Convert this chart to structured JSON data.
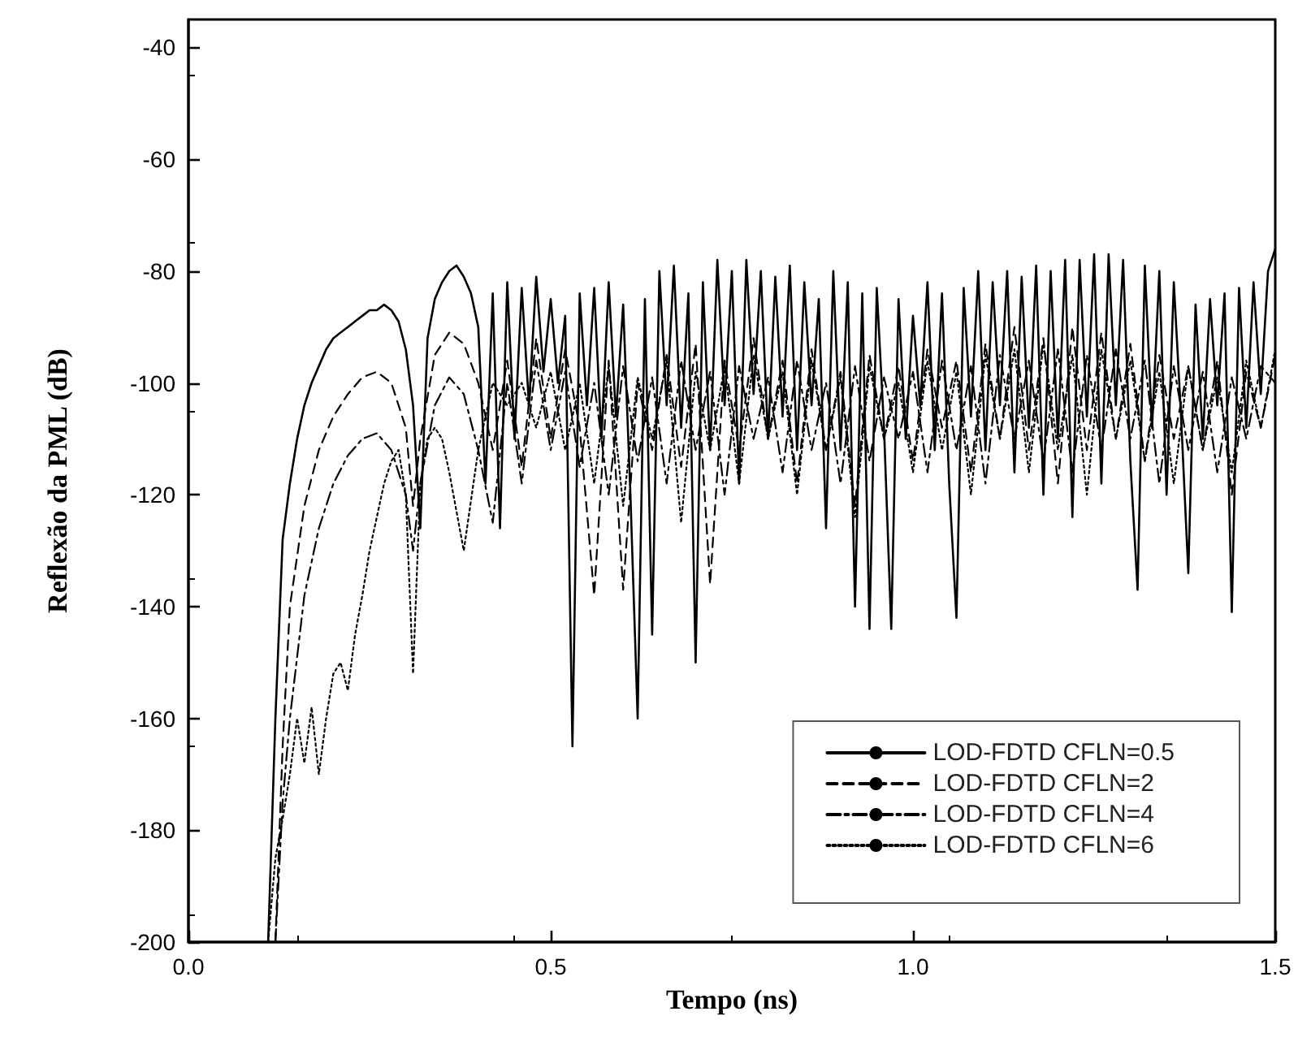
{
  "chart_data": {
    "type": "line",
    "xlabel": "Tempo (ns)",
    "ylabel": "Reflexão da PML (dB)",
    "xlim": [
      0,
      1.5
    ],
    "ylim": [
      -200,
      -35
    ],
    "xticks": [
      {
        "value": 0,
        "label": "0.0"
      },
      {
        "value": 0.5,
        "label": "0.5"
      },
      {
        "value": 1,
        "label": "1.0"
      },
      {
        "value": 1.5,
        "label": "1.5"
      }
    ],
    "yticks": [
      -200,
      -180,
      -160,
      -140,
      -120,
      -100,
      -80,
      -60,
      -40
    ],
    "grid": false,
    "legend": "bottom right",
    "marker": "none",
    "series": [
      {
        "name": "LOD-FDTD CFLN=0.5",
        "color": "#000000",
        "line_style": "solid",
        "x": [
          0.11,
          0.12,
          0.13,
          0.14,
          0.15,
          0.16,
          0.17,
          0.18,
          0.19,
          0.2,
          0.21,
          0.22,
          0.23,
          0.24,
          0.25,
          0.26,
          0.27,
          0.28,
          0.29,
          0.3,
          0.31,
          0.32,
          0.33,
          0.34,
          0.35,
          0.36,
          0.37,
          0.38,
          0.39,
          0.4,
          0.41,
          0.42,
          0.43,
          0.44,
          0.45,
          0.46,
          0.47,
          0.48,
          0.49,
          0.5,
          0.51,
          0.52,
          0.53,
          0.54,
          0.55,
          0.56,
          0.57,
          0.58,
          0.59,
          0.6,
          0.61,
          0.62,
          0.63,
          0.64,
          0.65,
          0.66,
          0.67,
          0.68,
          0.69,
          0.7,
          0.71,
          0.72,
          0.73,
          0.74,
          0.75,
          0.76,
          0.77,
          0.78,
          0.79,
          0.8,
          0.81,
          0.82,
          0.83,
          0.84,
          0.85,
          0.86,
          0.87,
          0.88,
          0.89,
          0.9,
          0.91,
          0.92,
          0.93,
          0.94,
          0.95,
          0.96,
          0.97,
          0.98,
          0.99,
          1.0,
          1.01,
          1.02,
          1.03,
          1.04,
          1.05,
          1.06,
          1.07,
          1.08,
          1.09,
          1.1,
          1.11,
          1.12,
          1.13,
          1.14,
          1.15,
          1.16,
          1.17,
          1.18,
          1.19,
          1.2,
          1.21,
          1.22,
          1.23,
          1.24,
          1.25,
          1.26,
          1.27,
          1.28,
          1.29,
          1.3,
          1.31,
          1.32,
          1.33,
          1.34,
          1.35,
          1.36,
          1.37,
          1.38,
          1.39,
          1.4,
          1.41,
          1.42,
          1.43,
          1.44,
          1.45,
          1.46,
          1.47,
          1.48,
          1.49,
          1.5
        ],
        "values": [
          -200,
          -160,
          -128,
          -118,
          -110,
          -104,
          -100,
          -97,
          -94,
          -92,
          -91,
          -90,
          -89,
          -88,
          -87,
          -87,
          -86,
          -87,
          -89,
          -94,
          -104,
          -126,
          -92,
          -85,
          -82,
          -80,
          -79,
          -81,
          -84,
          -90,
          -118,
          -84,
          -126,
          -82,
          -110,
          -83,
          -104,
          -81,
          -98,
          -85,
          -100,
          -88,
          -165,
          -84,
          -104,
          -83,
          -110,
          -82,
          -106,
          -86,
          -120,
          -160,
          -85,
          -145,
          -80,
          -104,
          -79,
          -108,
          -84,
          -150,
          -82,
          -112,
          -78,
          -104,
          -80,
          -118,
          -78,
          -102,
          -80,
          -110,
          -81,
          -106,
          -79,
          -112,
          -82,
          -104,
          -85,
          -126,
          -80,
          -112,
          -82,
          -140,
          -84,
          -144,
          -83,
          -108,
          -144,
          -85,
          -110,
          -88,
          -104,
          -82,
          -112,
          -84,
          -118,
          -142,
          -83,
          -106,
          -80,
          -112,
          -82,
          -104,
          -80,
          -116,
          -81,
          -108,
          -79,
          -120,
          -80,
          -110,
          -78,
          -124,
          -78,
          -106,
          -77,
          -118,
          -77,
          -104,
          -78,
          -114,
          -137,
          -79,
          -108,
          -80,
          -120,
          -82,
          -106,
          -134,
          -86,
          -110,
          -85,
          -104,
          -84,
          -141,
          -83,
          -108,
          -82,
          -102,
          -80,
          -76
        ]
      },
      {
        "name": "LOD-FDTD CFLN=2",
        "color": "#000000",
        "line_style": "dashed",
        "x": [
          0.12,
          0.13,
          0.14,
          0.16,
          0.18,
          0.2,
          0.22,
          0.24,
          0.26,
          0.28,
          0.3,
          0.31,
          0.32,
          0.34,
          0.36,
          0.38,
          0.4,
          0.42,
          0.44,
          0.46,
          0.48,
          0.5,
          0.52,
          0.54,
          0.56,
          0.58,
          0.6,
          0.62,
          0.64,
          0.66,
          0.68,
          0.7,
          0.72,
          0.74,
          0.76,
          0.78,
          0.8,
          0.82,
          0.84,
          0.86,
          0.88,
          0.9,
          0.92,
          0.94,
          0.96,
          0.98,
          1.0,
          1.02,
          1.04,
          1.06,
          1.08,
          1.1,
          1.12,
          1.14,
          1.16,
          1.18,
          1.2,
          1.22,
          1.24,
          1.26,
          1.28,
          1.3,
          1.32,
          1.34,
          1.36,
          1.38,
          1.4,
          1.42,
          1.44,
          1.46,
          1.48,
          1.5
        ],
        "values": [
          -200,
          -165,
          -140,
          -122,
          -112,
          -106,
          -102,
          -99,
          -98,
          -100,
          -108,
          -122,
          -110,
          -95,
          -91,
          -93,
          -100,
          -112,
          -96,
          -115,
          -92,
          -110,
          -94,
          -108,
          -138,
          -96,
          -137,
          -100,
          -112,
          -95,
          -115,
          -93,
          -136,
          -96,
          -112,
          -92,
          -110,
          -96,
          -118,
          -94,
          -112,
          -98,
          -122,
          -95,
          -110,
          -97,
          -114,
          -94,
          -108,
          -96,
          -116,
          -93,
          -110,
          -90,
          -112,
          -92,
          -118,
          -90,
          -112,
          -91,
          -110,
          -93,
          -114,
          -95,
          -110,
          -97,
          -112,
          -96,
          -120,
          -98,
          -108,
          -95
        ]
      },
      {
        "name": "LOD-FDTD CFLN=4",
        "color": "#000000",
        "line_style": "dashdot",
        "x": [
          0.12,
          0.13,
          0.14,
          0.16,
          0.18,
          0.2,
          0.22,
          0.24,
          0.26,
          0.28,
          0.3,
          0.31,
          0.32,
          0.34,
          0.36,
          0.38,
          0.4,
          0.42,
          0.44,
          0.46,
          0.48,
          0.5,
          0.52,
          0.54,
          0.56,
          0.58,
          0.6,
          0.62,
          0.64,
          0.66,
          0.68,
          0.7,
          0.72,
          0.74,
          0.76,
          0.78,
          0.8,
          0.82,
          0.84,
          0.86,
          0.88,
          0.9,
          0.92,
          0.94,
          0.96,
          0.98,
          1.0,
          1.02,
          1.04,
          1.06,
          1.08,
          1.1,
          1.12,
          1.14,
          1.16,
          1.18,
          1.2,
          1.22,
          1.24,
          1.26,
          1.28,
          1.3,
          1.32,
          1.34,
          1.36,
          1.38,
          1.4,
          1.42,
          1.44,
          1.46,
          1.48,
          1.5
        ],
        "values": [
          -200,
          -175,
          -160,
          -138,
          -126,
          -118,
          -113,
          -110,
          -109,
          -112,
          -120,
          -130,
          -118,
          -104,
          -99,
          -102,
          -112,
          -125,
          -100,
          -118,
          -96,
          -112,
          -98,
          -115,
          -100,
          -120,
          -97,
          -114,
          -99,
          -118,
          -96,
          -112,
          -98,
          -120,
          -97,
          -110,
          -99,
          -116,
          -96,
          -112,
          -100,
          -118,
          -97,
          -114,
          -99,
          -110,
          -98,
          -116,
          -96,
          -112,
          -97,
          -118,
          -95,
          -110,
          -96,
          -114,
          -94,
          -116,
          -95,
          -112,
          -94,
          -110,
          -96,
          -118,
          -97,
          -112,
          -98,
          -116,
          -99,
          -110,
          -97,
          -100
        ]
      },
      {
        "name": "LOD-FDTD CFLN=6",
        "color": "#000000",
        "line_style": "dotted",
        "x": [
          0.11,
          0.12,
          0.13,
          0.14,
          0.15,
          0.16,
          0.17,
          0.18,
          0.19,
          0.2,
          0.21,
          0.22,
          0.23,
          0.24,
          0.25,
          0.26,
          0.27,
          0.28,
          0.29,
          0.3,
          0.31,
          0.32,
          0.33,
          0.34,
          0.35,
          0.36,
          0.38,
          0.4,
          0.42,
          0.44,
          0.46,
          0.48,
          0.5,
          0.52,
          0.54,
          0.56,
          0.58,
          0.6,
          0.62,
          0.64,
          0.66,
          0.68,
          0.7,
          0.72,
          0.74,
          0.76,
          0.78,
          0.8,
          0.82,
          0.84,
          0.86,
          0.88,
          0.9,
          0.92,
          0.94,
          0.96,
          0.98,
          1.0,
          1.02,
          1.04,
          1.06,
          1.08,
          1.1,
          1.12,
          1.14,
          1.16,
          1.18,
          1.2,
          1.22,
          1.24,
          1.26,
          1.28,
          1.3,
          1.32,
          1.34,
          1.36,
          1.38,
          1.4,
          1.42,
          1.44,
          1.46,
          1.48,
          1.5
        ],
        "values": [
          -200,
          -185,
          -178,
          -170,
          -160,
          -168,
          -158,
          -170,
          -160,
          -152,
          -150,
          -155,
          -145,
          -138,
          -130,
          -124,
          -118,
          -114,
          -112,
          -120,
          -152,
          -118,
          -110,
          -108,
          -110,
          -116,
          -130,
          -112,
          -100,
          -104,
          -100,
          -108,
          -98,
          -112,
          -100,
          -118,
          -97,
          -122,
          -99,
          -110,
          -96,
          -125,
          -98,
          -112,
          -97,
          -118,
          -95,
          -110,
          -98,
          -120,
          -96,
          -112,
          -99,
          -124,
          -97,
          -110,
          -100,
          -116,
          -96,
          -112,
          -98,
          -120,
          -95,
          -110,
          -94,
          -116,
          -93,
          -112,
          -95,
          -120,
          -94,
          -110,
          -96,
          -114,
          -98,
          -118,
          -97,
          -112,
          -99,
          -116,
          -96,
          -108,
          -94
        ]
      }
    ]
  }
}
